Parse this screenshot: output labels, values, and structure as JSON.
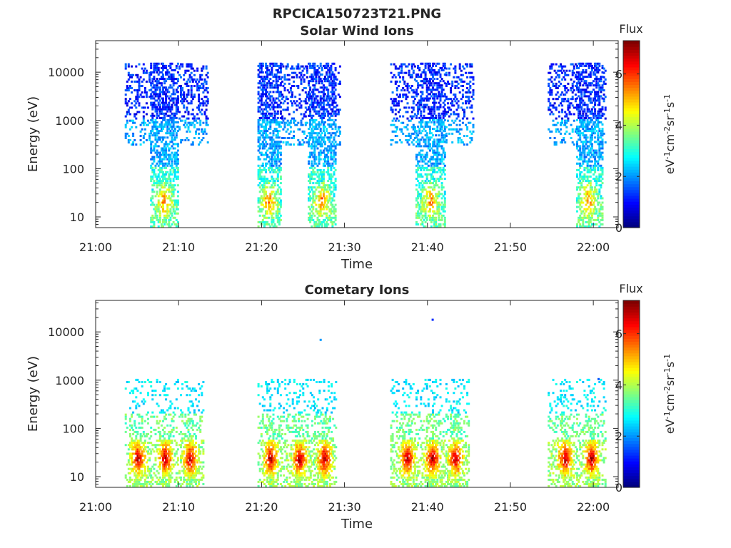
{
  "figure": {
    "title": "RPCICA150723T21.PNG",
    "background": "#ffffff",
    "axis_color": "#262626"
  },
  "chart_data": [
    {
      "type": "heatmap",
      "title": "Solar Wind Ions",
      "xlabel": "Time",
      "ylabel": "Energy (eV)",
      "x_ticks": [
        "21:00",
        "21:10",
        "21:20",
        "21:30",
        "21:40",
        "21:50",
        "22:00"
      ],
      "y_ticks": [
        "10",
        "100",
        "1000",
        "10000"
      ],
      "y_scale": "log",
      "xlim": [
        "21:00",
        "22:03"
      ],
      "ylim": [
        6,
        45000
      ],
      "colorbar": {
        "label": "Flux",
        "unit": "eV-1cm-2sr-1s-1",
        "ticks": [
          "0",
          "2",
          "4",
          "6"
        ],
        "range": [
          0,
          7.3
        ],
        "colormap": "jet"
      },
      "bursts": [
        {
          "start_min": 3.5,
          "end_min": 13.5,
          "ion_band_start_min": 6.5,
          "ion_band_end_min": 9.8,
          "emin": 300,
          "emax": 15000,
          "hot_center_min": 8.2
        },
        {
          "start_min": 19.5,
          "end_min": 22.5,
          "ion_band_start_min": 19.5,
          "ion_band_end_min": 22.3,
          "emin": 300,
          "emax": 15000,
          "hot_center_min": 20.8
        },
        {
          "start_min": 22.5,
          "end_min": 29.5,
          "ion_band_start_min": 25.5,
          "ion_band_end_min": 28.8,
          "emin": 300,
          "emax": 15000,
          "hot_center_min": 27.2
        },
        {
          "start_min": 35.5,
          "end_min": 45.5,
          "ion_band_start_min": 38.5,
          "ion_band_end_min": 42.0,
          "emin": 300,
          "emax": 15000,
          "hot_center_min": 40.3
        },
        {
          "start_min": 54.5,
          "end_min": 61.5,
          "ion_band_start_min": 57.8,
          "ion_band_end_min": 61.0,
          "emin": 300,
          "emax": 15000,
          "hot_center_min": 59.3
        }
      ]
    },
    {
      "type": "heatmap",
      "title": "Cometary Ions",
      "xlabel": "Time",
      "ylabel": "Energy (eV)",
      "x_ticks": [
        "21:00",
        "21:10",
        "21:20",
        "21:30",
        "21:40",
        "21:50",
        "22:00"
      ],
      "y_ticks": [
        "10",
        "100",
        "1000",
        "10000"
      ],
      "y_scale": "log",
      "xlim": [
        "21:00",
        "22:03"
      ],
      "ylim": [
        6,
        45000
      ],
      "colorbar": {
        "label": "Flux",
        "unit": "eV-1cm-2sr-1s-1",
        "ticks": [
          "0",
          "2",
          "4",
          "6"
        ],
        "range": [
          0,
          7.3
        ],
        "colormap": "jet"
      },
      "bursts": [
        {
          "start_min": 3.5,
          "end_min": 13.0,
          "emax": 1000,
          "hot_centers_min": [
            5.0,
            8.3,
            11.3
          ]
        },
        {
          "start_min": 19.5,
          "end_min": 29.0,
          "emax": 1000,
          "hot_centers_min": [
            21.0,
            24.5,
            27.5
          ]
        },
        {
          "start_min": 35.5,
          "end_min": 45.0,
          "emax": 1000,
          "hot_centers_min": [
            37.5,
            40.5,
            43.3
          ]
        },
        {
          "start_min": 54.5,
          "end_min": 61.5,
          "emax": 1000,
          "hot_centers_min": [
            56.5,
            59.7
          ]
        }
      ],
      "outliers": [
        {
          "t_min": 27.0,
          "energy": 6500,
          "flux": 2.0
        },
        {
          "t_min": 40.5,
          "energy": 17000,
          "flux": 1.2
        },
        {
          "t_min": 60.5,
          "energy": 1000,
          "flux": 1.5
        }
      ]
    }
  ]
}
